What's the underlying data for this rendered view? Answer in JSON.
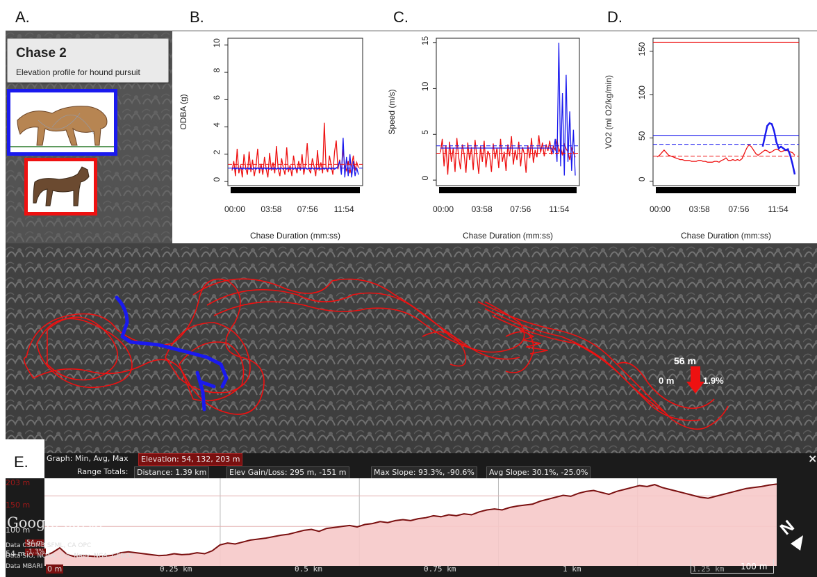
{
  "panel_letters": {
    "a": "A.",
    "b": "B.",
    "c": "C.",
    "d": "D.",
    "e": "E."
  },
  "card": {
    "title": "Chase 2",
    "subtitle": "Elevation profile for hound pursuit"
  },
  "colors": {
    "puma": "#1a1aee",
    "hound": "#ee1111",
    "profile_line": "#7a1010",
    "profile_fill": "#f6c9c9"
  },
  "map": {
    "flag_distance": "56 m",
    "flag_left": "0 m",
    "flag_right": "1.9%"
  },
  "ge_bar": {
    "graph_label": "Graph: Min, Avg, Max",
    "elevation": "Elevation: 54, 132, 203 m",
    "range_totals": "Range Totals:",
    "distance": "Distance: 1.39 km",
    "elev_gain": "Elev Gain/Loss: 295 m, -151 m",
    "max_slope": "Max Slope: 93.3%, -90.6%",
    "avg_slope": "Avg Slope: 30.1%, -25.0%",
    "close": "×",
    "y_labels": [
      "203 m",
      "150 m",
      "100 m",
      "54 m"
    ],
    "x_labels": [
      "0 m",
      "0.25 km",
      "0.5 km",
      "0.75 km",
      "1 km",
      "1.25 km"
    ],
    "hover_values": [
      "54 m",
      "-1.3%"
    ],
    "scale": "100 m",
    "logo": "Google earth",
    "credits": [
      "Data CSUMB SFML, CA OPC",
      "Data SIO, NOAA, U.S. Navy, NGA, GEBCO",
      "Data MBARI"
    ],
    "compass": "N"
  },
  "chart_data": [
    {
      "id": "B",
      "type": "line",
      "xlabel": "Chase Duration (mm:ss)",
      "ylabel": "ODBA (g)",
      "xtick_labels": [
        "00:00",
        "03:58",
        "07:56",
        "11:54"
      ],
      "yticks": [
        0,
        2,
        4,
        6,
        8,
        10
      ],
      "ylim": [
        -0.3,
        10.5
      ],
      "series": [
        {
          "values": [
            0.8,
            1.5,
            0.4,
            2.4,
            0.6,
            1.2,
            0.3,
            2.0,
            1.0,
            0.5,
            2.2,
            0.7,
            1.6,
            0.4,
            1.1,
            2.4,
            0.6,
            1.3,
            0.5,
            1.8,
            0.9,
            0.3,
            2.1,
            0.8,
            1.4,
            0.6,
            2.6,
            0.9,
            0.4,
            1.7,
            1.0,
            0.5,
            2.5,
            0.7,
            1.2,
            0.4,
            1.9,
            1.1,
            0.6,
            1.5,
            0.8,
            2.0,
            0.5,
            1.3,
            2.8,
            0.9,
            0.6,
            1.7,
            1.1,
            0.4,
            2.3,
            0.8,
            1.4,
            0.6,
            4.3,
            1.0,
            0.7,
            1.9,
            1.2,
            0.5,
            2.2,
            3.0,
            0.9,
            1.6,
            0.7,
            2.4,
            1.1,
            0.8,
            1.5,
            0.6,
            1.2,
            1.9,
            0.8,
            1.4,
            1.0
          ]
        },
        {
          "values": [
            0.9,
            1.0,
            0.9,
            1.0,
            0.9,
            1.0,
            0.9,
            1.0,
            0.9,
            1.0,
            0.9,
            1.0,
            0.9,
            1.0,
            0.9,
            1.0,
            0.9,
            1.0,
            0.9,
            1.0,
            0.9,
            1.0,
            0.9,
            1.0,
            0.9,
            1.0,
            0.9,
            1.0,
            0.9,
            1.0,
            0.9,
            1.0,
            0.9,
            1.0,
            0.9,
            1.0,
            0.9,
            1.0,
            0.9,
            1.0,
            0.9,
            1.0,
            0.9,
            1.0,
            0.9,
            1.0,
            0.9,
            1.0,
            0.9,
            1.0,
            0.9,
            1.0,
            0.9,
            1.0,
            0.9,
            1.0,
            0.9,
            1.0,
            0.9,
            1.0,
            0.9,
            1.0,
            1.1,
            1.5,
            0.5,
            3.2,
            0.3,
            1.8,
            0.4,
            2.0,
            0.3,
            1.5,
            0.4,
            1.0,
            0.5
          ]
        }
      ]
    },
    {
      "id": "C",
      "type": "line",
      "xlabel": "Chase Duration (mm:ss)",
      "ylabel": "Speed (m/s)",
      "xtick_labels": [
        "00:00",
        "03:58",
        "07:56",
        "11:54"
      ],
      "yticks": [
        0,
        5,
        10,
        15
      ],
      "ylim": [
        -0.6,
        15.5
      ],
      "series": [
        {
          "values": [
            3.0,
            4.5,
            1.5,
            3.8,
            0.6,
            4.2,
            2.0,
            3.5,
            0.9,
            4.6,
            2.5,
            1.2,
            3.9,
            2.8,
            0.8,
            4.1,
            2.2,
            3.6,
            1.1,
            4.4,
            2.6,
            0.7,
            3.7,
            2.0,
            4.3,
            1.4,
            3.2,
            2.7,
            0.9,
            4.0,
            2.3,
            3.5,
            1.3,
            4.5,
            2.0,
            3.1,
            1.0,
            3.9,
            2.6,
            4.8,
            1.7,
            3.3,
            2.2,
            4.2,
            1.5,
            3.6,
            2.9,
            0.8,
            3.8,
            2.4,
            4.6,
            1.9,
            3.3,
            2.5,
            4.9,
            3.0,
            4.1,
            2.6,
            3.9,
            3.2,
            4.3,
            2.8,
            3.7,
            3.3,
            4.5,
            3.0,
            3.6,
            2.7,
            4.0,
            3.4,
            3.1,
            2.2,
            3.5,
            3.0,
            2.5
          ]
        },
        {
          "values": [
            3.5,
            3.5,
            3.5,
            3.5,
            3.5,
            3.5,
            3.5,
            3.5,
            3.5,
            3.5,
            3.5,
            3.5,
            3.5,
            3.5,
            3.5,
            3.5,
            3.5,
            3.5,
            3.5,
            3.5,
            3.5,
            3.5,
            3.5,
            3.5,
            3.5,
            3.5,
            3.5,
            3.5,
            3.5,
            3.5,
            3.5,
            3.5,
            3.5,
            3.5,
            3.5,
            3.5,
            3.5,
            3.5,
            3.5,
            3.5,
            3.5,
            3.5,
            3.5,
            3.5,
            3.5,
            3.5,
            3.5,
            3.5,
            3.5,
            3.5,
            3.5,
            3.5,
            3.5,
            3.5,
            3.5,
            3.5,
            3.5,
            3.5,
            3.5,
            3.5,
            3.5,
            3.5,
            3.0,
            4.5,
            2.0,
            15.0,
            1.5,
            9.5,
            0.5,
            11.5,
            2.0,
            7.5,
            1.0,
            5.5,
            0.5
          ]
        }
      ]
    },
    {
      "id": "D",
      "type": "line",
      "xlabel": "Chase Duration (mm:ss)",
      "ylabel": "VO2 (ml O2/kg/min)",
      "xtick_labels": [
        "00:00",
        "03:58",
        "07:56",
        "11:54"
      ],
      "yticks": [
        0,
        50,
        100,
        150
      ],
      "ylim": [
        -5,
        165
      ],
      "hlines": [
        {
          "y": 160,
          "color": "#ee1111"
        },
        {
          "y": 53,
          "color": "#1a1aee"
        }
      ],
      "series": [
        {
          "values": [
            28,
            30,
            33,
            36,
            33,
            30,
            29,
            28,
            27,
            26,
            25,
            25,
            24,
            24,
            24,
            23,
            23,
            23,
            24,
            24,
            23,
            23,
            22,
            22,
            22,
            23,
            23,
            22,
            24,
            25,
            27,
            24,
            24,
            25,
            24,
            25,
            24,
            26,
            32,
            38,
            42,
            40,
            36,
            32,
            30,
            32,
            34,
            36,
            35,
            33,
            34,
            36,
            37,
            36,
            34,
            35,
            36,
            35,
            34,
            33,
            30
          ]
        },
        {
          "values": [
            null,
            null,
            null,
            null,
            null,
            null,
            null,
            null,
            null,
            null,
            null,
            null,
            null,
            null,
            null,
            null,
            null,
            null,
            null,
            null,
            null,
            null,
            null,
            null,
            null,
            null,
            null,
            null,
            null,
            null,
            null,
            null,
            null,
            null,
            null,
            null,
            null,
            null,
            null,
            null,
            null,
            null,
            null,
            null,
            null,
            null,
            40,
            52,
            64,
            67,
            66,
            58,
            45,
            38,
            40,
            38,
            36,
            37,
            30,
            20,
            8
          ]
        }
      ]
    }
  ],
  "profile_data": {
    "ylim": [
      35,
      215
    ],
    "values": [
      55,
      62,
      72,
      58,
      54,
      56,
      55,
      54,
      55,
      57,
      62,
      64,
      62,
      60,
      58,
      56,
      57,
      60,
      58,
      59,
      62,
      60,
      66,
      78,
      82,
      80,
      84,
      88,
      90,
      92,
      95,
      98,
      100,
      104,
      108,
      110,
      106,
      112,
      114,
      116,
      118,
      115,
      120,
      122,
      126,
      124,
      128,
      130,
      128,
      132,
      134,
      138,
      136,
      140,
      138,
      142,
      140,
      146,
      150,
      152,
      150,
      155,
      158,
      160,
      162,
      168,
      172,
      176,
      180,
      178,
      184,
      188,
      190,
      186,
      182,
      188,
      192,
      196,
      200,
      198,
      202,
      196,
      192,
      188,
      184,
      180,
      176,
      174,
      178,
      182,
      186,
      190,
      194,
      196,
      198,
      201,
      203
    ]
  }
}
